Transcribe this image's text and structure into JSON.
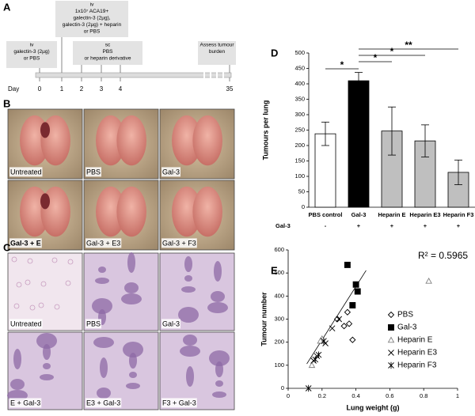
{
  "panels": {
    "a": {
      "label": "A",
      "boxes": [
        {
          "lines": [
            "iv",
            "1x10⁷ ACA19+",
            "galectin-3 (2µg),",
            "galectin-3 (2µg) + heparin",
            "or PBS"
          ]
        },
        {
          "lines": [
            "iv",
            "galectin-3 (2µg)",
            "or PBS"
          ]
        },
        {
          "lines": [
            "sc",
            "PBS",
            "or heparin derivative"
          ]
        },
        {
          "lines": [
            "Assess tumour",
            "burden"
          ]
        }
      ],
      "day_label": "Day",
      "days": [
        "0",
        "1",
        "2",
        "3",
        "4",
        "35"
      ]
    },
    "b": {
      "label": "B",
      "images": [
        "Untreated",
        "PBS",
        "Gal-3",
        "Gal-3 + E",
        "Gal-3 + E3",
        "Gal-3 + F3"
      ]
    },
    "c": {
      "label": "C",
      "images": [
        "Untreated",
        "PBS",
        "Gal-3",
        "E + Gal-3",
        "E3 + Gal-3",
        "F3 + Gal-3"
      ]
    }
  },
  "chart_data": [
    {
      "type": "bar",
      "label": "D",
      "y_label": "Tumours per lung",
      "categories": [
        "PBS control",
        "Gal-3",
        "Heparin E",
        "Heparin E3",
        "Heparin F3"
      ],
      "values": [
        238,
        410,
        247,
        215,
        113
      ],
      "errors": [
        38,
        27,
        78,
        52,
        40
      ],
      "colors": [
        "#ffffff",
        "#000000",
        "#bfbfbf",
        "#bfbfbf",
        "#bfbfbf"
      ],
      "ylim": [
        0,
        500
      ],
      "yticks": [
        0,
        50,
        100,
        150,
        200,
        250,
        300,
        350,
        400,
        450,
        500
      ],
      "row_label": "Gal-3",
      "row": [
        "-",
        "+",
        "+",
        "+",
        "+"
      ],
      "significance": [
        "*",
        "*",
        "*",
        "**"
      ]
    },
    {
      "type": "scatter",
      "label": "E",
      "annotation": "R² = 0.5965",
      "x_label": "Lung weight (g)",
      "y_label": "Tumour number",
      "xlim": [
        0,
        1
      ],
      "xticks": [
        0,
        0.2,
        0.4,
        0.6,
        0.8,
        1
      ],
      "ylim": [
        0,
        600
      ],
      "yticks": [
        0,
        100,
        200,
        300,
        400,
        500,
        600
      ],
      "series": [
        {
          "name": "PBS",
          "marker": "diamond",
          "color": "#000000",
          "x": [
            0.29,
            0.33,
            0.35,
            0.36,
            0.38
          ],
          "y": [
            300,
            270,
            330,
            280,
            210
          ]
        },
        {
          "name": "Gal-3",
          "marker": "square",
          "color": "#000000",
          "x": [
            0.35,
            0.38,
            0.4,
            0.41
          ],
          "y": [
            535,
            360,
            450,
            420
          ]
        },
        {
          "name": "Heparin E",
          "marker": "triangle",
          "color": "#808080",
          "x": [
            0.83,
            0.2,
            0.19,
            0.14
          ],
          "y": [
            465,
            215,
            205,
            100
          ]
        },
        {
          "name": "Heparin E3",
          "marker": "x",
          "color": "#000000",
          "x": [
            0.3,
            0.26,
            0.22,
            0.17,
            0.15
          ],
          "y": [
            300,
            260,
            195,
            140,
            120
          ]
        },
        {
          "name": "Heparin F3",
          "marker": "star",
          "color": "#000000",
          "x": [
            0.12,
            0.18,
            0.16,
            0.21
          ],
          "y": [
            0,
            145,
            125,
            205
          ]
        }
      ],
      "trendline": {
        "x": [
          0.11,
          0.46
        ],
        "y": [
          106,
          511
        ]
      }
    }
  ]
}
